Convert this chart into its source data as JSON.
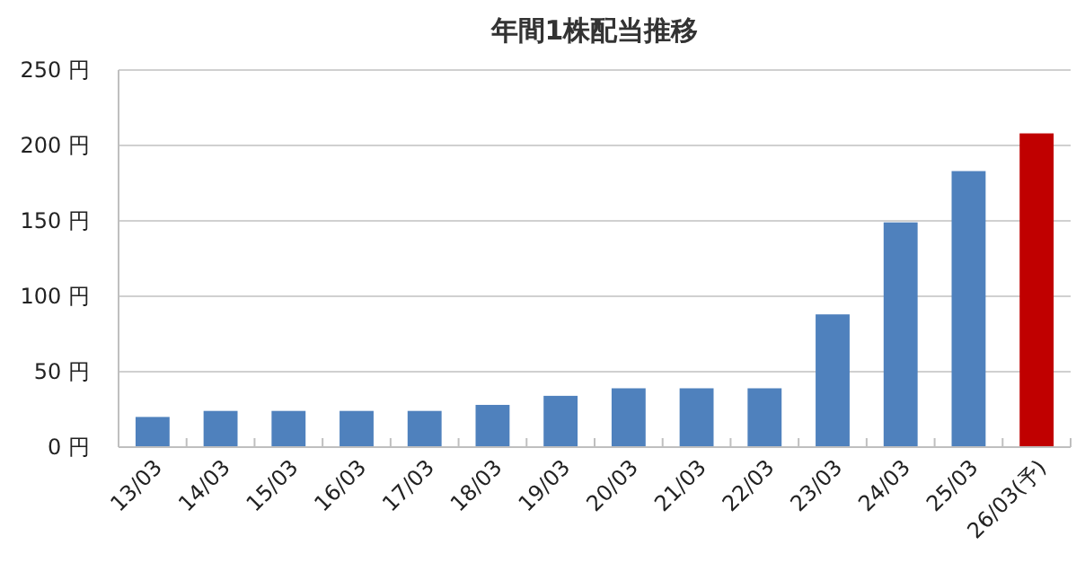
{
  "chart_data": {
    "type": "bar",
    "title": "年間1株配当推移",
    "categories": [
      "13/03",
      "14/03",
      "15/03",
      "16/03",
      "17/03",
      "18/03",
      "19/03",
      "20/03",
      "21/03",
      "22/03",
      "23/03",
      "24/03",
      "25/03",
      "26/03(予)"
    ],
    "values": [
      20,
      24,
      24,
      24,
      24,
      28,
      34,
      39,
      39,
      39,
      88,
      149,
      183,
      208
    ],
    "colors": [
      "#4f81bd",
      "#4f81bd",
      "#4f81bd",
      "#4f81bd",
      "#4f81bd",
      "#4f81bd",
      "#4f81bd",
      "#4f81bd",
      "#4f81bd",
      "#4f81bd",
      "#4f81bd",
      "#4f81bd",
      "#4f81bd",
      "#c00000"
    ],
    "ylim": [
      0,
      250
    ],
    "yticks": [
      {
        "value": 0,
        "label": "0 円"
      },
      {
        "value": 50,
        "label": "50 円"
      },
      {
        "value": 100,
        "label": "100 円"
      },
      {
        "value": 150,
        "label": "150 円"
      },
      {
        "value": 200,
        "label": "200 円"
      },
      {
        "value": 250,
        "label": "250 円"
      }
    ],
    "grid": "y"
  }
}
